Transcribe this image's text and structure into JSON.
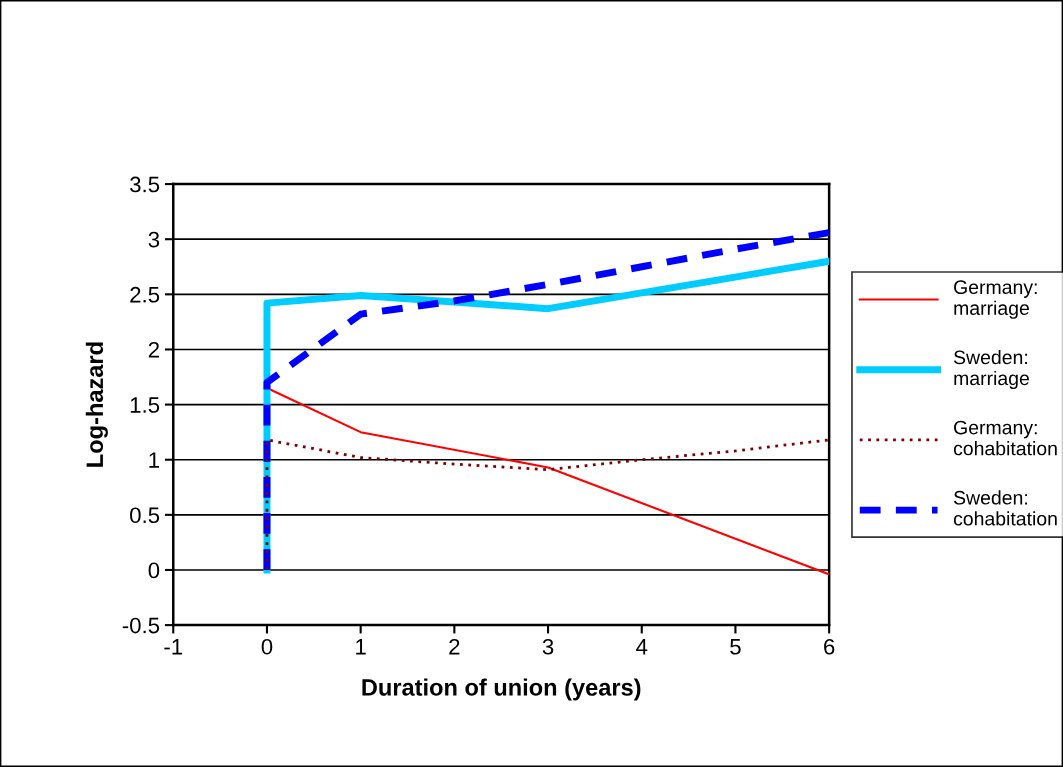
{
  "chart_data": {
    "type": "line",
    "xlabel": "Duration of union (years)",
    "ylabel": "Log-hazard",
    "xlim": [
      -1,
      6
    ],
    "xticks": [
      {
        "value": -1,
        "label": "-1"
      },
      0,
      1,
      2,
      3,
      4,
      5,
      6
    ],
    "ylim": [
      -0.5,
      3.5
    ],
    "yticks": [
      {
        "value": -0.5,
        "label": "-0.5"
      },
      0,
      0.5,
      1,
      1.5,
      2,
      2.5,
      3,
      3.5
    ],
    "grid": "y",
    "legend": "right",
    "marker": "none",
    "series": [
      {
        "name": "Germany:\nmarriage",
        "color": "#ff0000",
        "line_style": "solid",
        "x": [
          0,
          0,
          1,
          3,
          6
        ],
        "values": [
          0,
          1.65,
          1.25,
          0.93,
          -0.04
        ]
      },
      {
        "name": "Sweden:\nmarriage",
        "color": "#00ccff",
        "line_style": "solid",
        "x": [
          0,
          0,
          1,
          2,
          3,
          6
        ],
        "values": [
          0,
          2.42,
          2.49,
          2.43,
          2.37,
          2.8
        ]
      },
      {
        "name": "Germany:\ncohabitation",
        "color": "#800000",
        "line_style": "dotted",
        "x": [
          0,
          0,
          1,
          2,
          3,
          4,
          5,
          6
        ],
        "values": [
          0,
          1.18,
          1.02,
          0.96,
          0.91,
          1.0,
          1.08,
          1.18
        ]
      },
      {
        "name": "Sweden:\ncohabitation",
        "color": "#0000ff",
        "line_style": "dashed",
        "x": [
          0,
          0,
          1,
          2,
          3,
          4,
          5,
          6
        ],
        "values": [
          0,
          1.7,
          2.32,
          2.44,
          2.59,
          2.75,
          2.91,
          3.06
        ]
      }
    ]
  }
}
